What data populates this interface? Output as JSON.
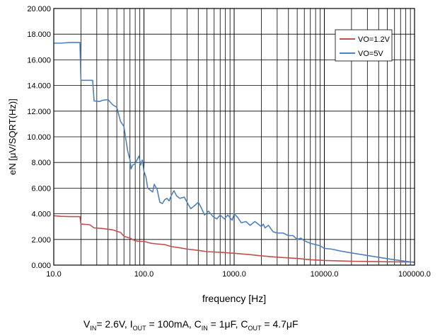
{
  "chart_data": {
    "type": "line",
    "title": "",
    "xlabel": "frequency [Hz]",
    "ylabel": "eN [μV/SQRT(Hz)]",
    "xscale": "log",
    "xlim": [
      10,
      100000
    ],
    "ylim": [
      0,
      20
    ],
    "grid": true,
    "legend_position": "top-right",
    "x_ticks": [
      10,
      100,
      1000,
      10000,
      100000
    ],
    "x_tick_labels": [
      "10.0",
      "100.0",
      "1000.0",
      "10000.0",
      "100000.0"
    ],
    "y_ticks": [
      0,
      2,
      4,
      6,
      8,
      10,
      12,
      14,
      16,
      18,
      20
    ],
    "y_tick_labels": [
      "0.000",
      "2.000",
      "4.000",
      "6.000",
      "8.000",
      "10.000",
      "12.000",
      "14.000",
      "16.000",
      "18.000",
      "20.000"
    ],
    "series": [
      {
        "name": "VO=1.2V",
        "color": "#c0504d",
        "points": [
          [
            10,
            3.85
          ],
          [
            12,
            3.8
          ],
          [
            15,
            3.78
          ],
          [
            19.5,
            3.78
          ],
          [
            20,
            3.2
          ],
          [
            25,
            3.15
          ],
          [
            28,
            2.9
          ],
          [
            35,
            2.85
          ],
          [
            45,
            2.75
          ],
          [
            55,
            2.55
          ],
          [
            60,
            2.25
          ],
          [
            70,
            2.1
          ],
          [
            80,
            1.9
          ],
          [
            90,
            1.85
          ],
          [
            100,
            1.85
          ],
          [
            120,
            1.7
          ],
          [
            140,
            1.65
          ],
          [
            170,
            1.6
          ],
          [
            200,
            1.45
          ],
          [
            250,
            1.35
          ],
          [
            300,
            1.25
          ],
          [
            400,
            1.15
          ],
          [
            500,
            1.05
          ],
          [
            700,
            1.0
          ],
          [
            1000,
            0.92
          ],
          [
            1500,
            0.82
          ],
          [
            2000,
            0.72
          ],
          [
            3000,
            0.62
          ],
          [
            5000,
            0.52
          ],
          [
            7000,
            0.42
          ],
          [
            10000,
            0.36
          ],
          [
            20000,
            0.3
          ],
          [
            50000,
            0.26
          ],
          [
            100000,
            0.24
          ]
        ]
      },
      {
        "name": "VO=5V",
        "color": "#4f81bd",
        "points": [
          [
            10,
            17.3
          ],
          [
            12,
            17.3
          ],
          [
            15,
            17.35
          ],
          [
            19.5,
            17.35
          ],
          [
            20,
            14.4
          ],
          [
            24,
            14.4
          ],
          [
            27,
            14.4
          ],
          [
            28,
            12.8
          ],
          [
            32,
            12.75
          ],
          [
            35,
            12.85
          ],
          [
            40,
            12.9
          ],
          [
            45,
            12.5
          ],
          [
            50,
            12.3
          ],
          [
            55,
            11.2
          ],
          [
            60,
            10.8
          ],
          [
            63,
            9.8
          ],
          [
            66,
            8.9
          ],
          [
            70,
            8.2
          ],
          [
            72,
            7.5
          ],
          [
            75,
            7.8
          ],
          [
            80,
            7.9
          ],
          [
            85,
            8.3
          ],
          [
            88,
            8.5
          ],
          [
            92,
            7.8
          ],
          [
            96,
            8.2
          ],
          [
            100,
            7.3
          ],
          [
            105,
            6.9
          ],
          [
            110,
            6.0
          ],
          [
            115,
            5.9
          ],
          [
            120,
            5.8
          ],
          [
            125,
            5.7
          ],
          [
            130,
            6.3
          ],
          [
            140,
            5.9
          ],
          [
            150,
            4.9
          ],
          [
            160,
            4.8
          ],
          [
            170,
            5.1
          ],
          [
            180,
            5.2
          ],
          [
            190,
            5.0
          ],
          [
            200,
            5.4
          ],
          [
            215,
            5.8
          ],
          [
            230,
            5.4
          ],
          [
            250,
            5.2
          ],
          [
            280,
            5.3
          ],
          [
            300,
            4.9
          ],
          [
            330,
            4.4
          ],
          [
            360,
            4.6
          ],
          [
            400,
            4.9
          ],
          [
            430,
            4.5
          ],
          [
            470,
            3.9
          ],
          [
            520,
            4.2
          ],
          [
            580,
            3.8
          ],
          [
            640,
            3.6
          ],
          [
            700,
            3.9
          ],
          [
            780,
            3.6
          ],
          [
            850,
            3.9
          ],
          [
            950,
            3.5
          ],
          [
            1000,
            4.0
          ],
          [
            1100,
            3.7
          ],
          [
            1200,
            3.3
          ],
          [
            1350,
            3.4
          ],
          [
            1500,
            3.1
          ],
          [
            1700,
            3.4
          ],
          [
            1850,
            3.2
          ],
          [
            2000,
            3.0
          ],
          [
            2100,
            3.2
          ],
          [
            2200,
            2.9
          ],
          [
            2400,
            3.1
          ],
          [
            2700,
            2.6
          ],
          [
            3000,
            2.5
          ],
          [
            3500,
            2.5
          ],
          [
            4000,
            2.3
          ],
          [
            4500,
            2.3
          ],
          [
            5000,
            2.0
          ],
          [
            5500,
            2.1
          ],
          [
            6000,
            1.9
          ],
          [
            7000,
            1.7
          ],
          [
            8000,
            1.6
          ],
          [
            9000,
            1.5
          ],
          [
            10000,
            1.3
          ],
          [
            12000,
            1.25
          ],
          [
            15000,
            1.1
          ],
          [
            20000,
            0.95
          ],
          [
            30000,
            0.75
          ],
          [
            50000,
            0.5
          ],
          [
            70000,
            0.35
          ],
          [
            100000,
            0.22
          ]
        ]
      }
    ],
    "annotation": {
      "parts": [
        {
          "t": "V"
        },
        {
          "t": "IN",
          "sub": true
        },
        {
          "t": "= 2.6V, I"
        },
        {
          "t": "OUT",
          "sub": true
        },
        {
          "t": " = 100mA, C"
        },
        {
          "t": "IN",
          "sub": true
        },
        {
          "t": " = 1μF, C"
        },
        {
          "t": "OUT",
          "sub": true
        },
        {
          "t": " = 4.7μF"
        }
      ]
    }
  }
}
